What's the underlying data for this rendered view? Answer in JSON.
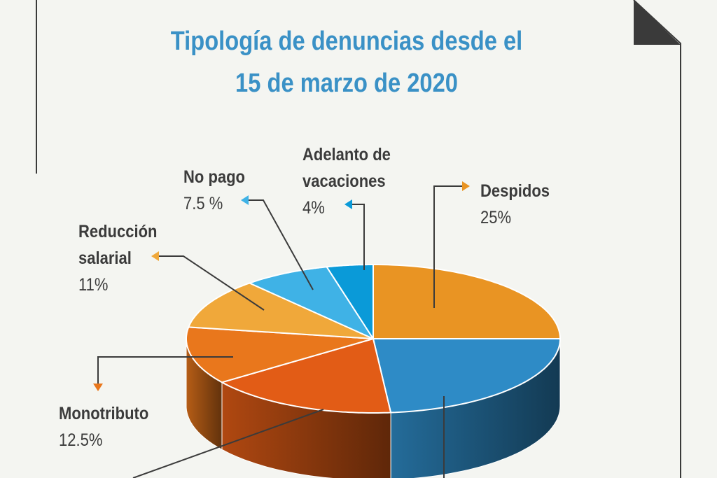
{
  "title_lines": [
    "Tipología de denuncias desde el",
    "15 de marzo de 2020"
  ],
  "chart_data": {
    "type": "pie",
    "title": "Tipología de denuncias desde el 15 de marzo de 2020",
    "slices": [
      {
        "label_lines": [
          "Despidos"
        ],
        "value": 25,
        "value_text": "25%",
        "color": "#e99423"
      },
      {
        "label_lines": [],
        "value": 23.5,
        "value_text": "",
        "color": "#2e8bc6"
      },
      {
        "label_lines": [],
        "value": 16.5,
        "value_text": "",
        "color": "#e25c16"
      },
      {
        "label_lines": [
          "Monotributo"
        ],
        "value": 12.5,
        "value_text": "12.5%",
        "color": "#e9771c"
      },
      {
        "label_lines": [
          "Reducción",
          "salarial"
        ],
        "value": 11,
        "value_text": "11%",
        "color": "#f0a83a"
      },
      {
        "label_lines": [
          "No pago"
        ],
        "value": 7.5,
        "value_text": "7.5 %",
        "color": "#3fb2e6"
      },
      {
        "label_lines": [
          "Adelanto de",
          "vacaciones"
        ],
        "value": 4,
        "value_text": "4%",
        "color": "#0a9ad8"
      }
    ]
  }
}
